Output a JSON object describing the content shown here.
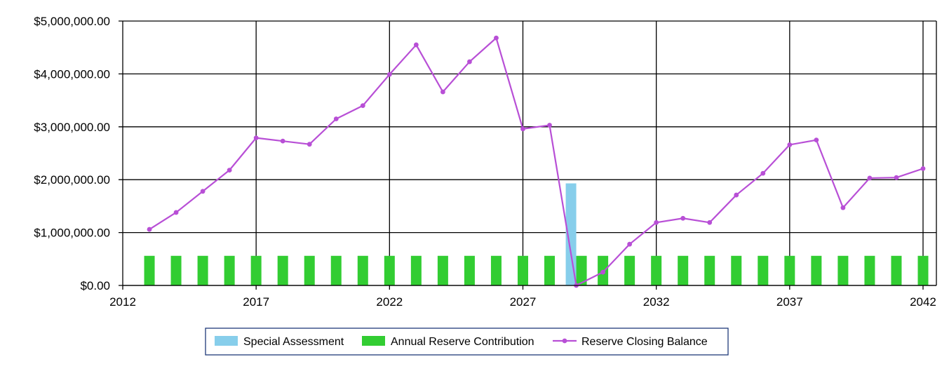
{
  "chart_data": {
    "type": "bar+line",
    "title": "",
    "xlabel": "",
    "ylabel": "",
    "x_ticks": [
      "2012",
      "2017",
      "2022",
      "2027",
      "2032",
      "2037",
      "2042"
    ],
    "y_ticks": [
      "$0.00",
      "$1,000,000.00",
      "$2,000,000.00",
      "$3,000,000.00",
      "$4,000,000.00",
      "$5,000,000.00"
    ],
    "xlim": [
      2012,
      2042.5
    ],
    "ylim": [
      0,
      5000000
    ],
    "grid": true,
    "legend_position": "bottom-center",
    "years": [
      2013,
      2014,
      2015,
      2016,
      2017,
      2018,
      2019,
      2020,
      2021,
      2022,
      2023,
      2024,
      2025,
      2026,
      2027,
      2028,
      2029,
      2030,
      2031,
      2032,
      2033,
      2034,
      2035,
      2036,
      2037,
      2038,
      2039,
      2040,
      2041,
      2042
    ],
    "series": [
      {
        "name": "Special Assessment",
        "kind": "bar",
        "color": "#87ceeb",
        "values": [
          0,
          0,
          0,
          0,
          0,
          0,
          0,
          0,
          0,
          0,
          0,
          0,
          0,
          0,
          0,
          0,
          1930000,
          0,
          0,
          0,
          0,
          0,
          0,
          0,
          0,
          0,
          0,
          0,
          0,
          0
        ]
      },
      {
        "name": "Annual Reserve Contribution",
        "kind": "bar",
        "color": "#32cd32",
        "values": [
          560000,
          560000,
          560000,
          560000,
          560000,
          560000,
          560000,
          560000,
          560000,
          560000,
          560000,
          560000,
          560000,
          560000,
          560000,
          560000,
          560000,
          560000,
          560000,
          560000,
          560000,
          560000,
          560000,
          560000,
          560000,
          560000,
          560000,
          560000,
          560000,
          560000
        ]
      },
      {
        "name": "Reserve Closing Balance",
        "kind": "line",
        "color": "#b84fd6",
        "values": [
          1060000,
          1380000,
          1780000,
          2180000,
          2790000,
          2730000,
          2670000,
          3150000,
          3400000,
          3990000,
          4550000,
          3660000,
          4230000,
          4680000,
          2960000,
          3030000,
          0,
          250000,
          780000,
          1190000,
          1270000,
          1190000,
          1710000,
          2120000,
          2660000,
          2750000,
          1470000,
          2030000,
          2040000,
          2210000
        ]
      }
    ]
  },
  "colors": {
    "grid": "#000000",
    "legend_border": "#1f3a7a"
  }
}
